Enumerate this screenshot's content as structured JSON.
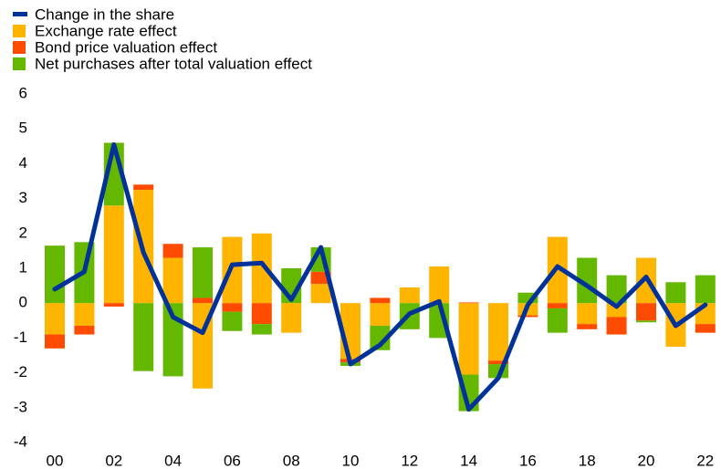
{
  "chart_data": {
    "type": "bar",
    "categories": [
      "00",
      null,
      "02",
      null,
      "04",
      null,
      "06",
      null,
      "08",
      null,
      "10",
      null,
      "12",
      null,
      "14",
      null,
      "16",
      null,
      "18",
      null,
      "20",
      null,
      "22"
    ],
    "series": [
      {
        "name": "Change in the share",
        "type": "line",
        "color": "#003299",
        "values": [
          0.4,
          0.9,
          4.55,
          1.45,
          -0.4,
          -0.85,
          1.1,
          1.15,
          0.1,
          1.6,
          -1.75,
          -1.2,
          -0.3,
          0.05,
          -3.05,
          -2.15,
          -0.05,
          1.05,
          0.5,
          -0.1,
          0.75,
          -0.65,
          -0.05
        ]
      },
      {
        "name": "Exchange rate effect",
        "type": "bar",
        "color": "#ffb400",
        "values": [
          -0.9,
          -0.65,
          2.8,
          3.25,
          1.3,
          -2.45,
          1.9,
          2.0,
          -0.85,
          0.55,
          -1.6,
          -0.65,
          0.45,
          1.05,
          -2.05,
          -1.65,
          -0.35,
          1.9,
          -0.6,
          -0.4,
          1.3,
          -1.25,
          -0.6
        ]
      },
      {
        "name": "Bond price valuation effect",
        "type": "bar",
        "color": "#ff4b00",
        "values": [
          -0.4,
          -0.25,
          -0.1,
          0.15,
          0.4,
          0.15,
          -0.25,
          -0.6,
          0,
          0.35,
          -0.1,
          0.15,
          0,
          0,
          0.02,
          -0.1,
          -0.05,
          -0.15,
          -0.15,
          -0.5,
          -0.5,
          0,
          -0.25
        ]
      },
      {
        "name": "Net purchases after total valuation effect",
        "type": "bar",
        "color": "#65b800",
        "values": [
          1.65,
          1.75,
          1.8,
          -1.95,
          -2.1,
          1.45,
          -0.55,
          -0.3,
          1.0,
          0.7,
          -0.1,
          -0.7,
          -0.75,
          -1.0,
          -1.05,
          -0.4,
          0.3,
          -0.7,
          1.3,
          0.8,
          -0.05,
          0.6,
          0.8
        ]
      }
    ],
    "ylim": [
      -4,
      6
    ],
    "yticks": [
      -4,
      -3,
      -2,
      -1,
      0,
      1,
      2,
      3,
      4,
      5,
      6
    ],
    "grid": false,
    "legend": "top-left"
  }
}
